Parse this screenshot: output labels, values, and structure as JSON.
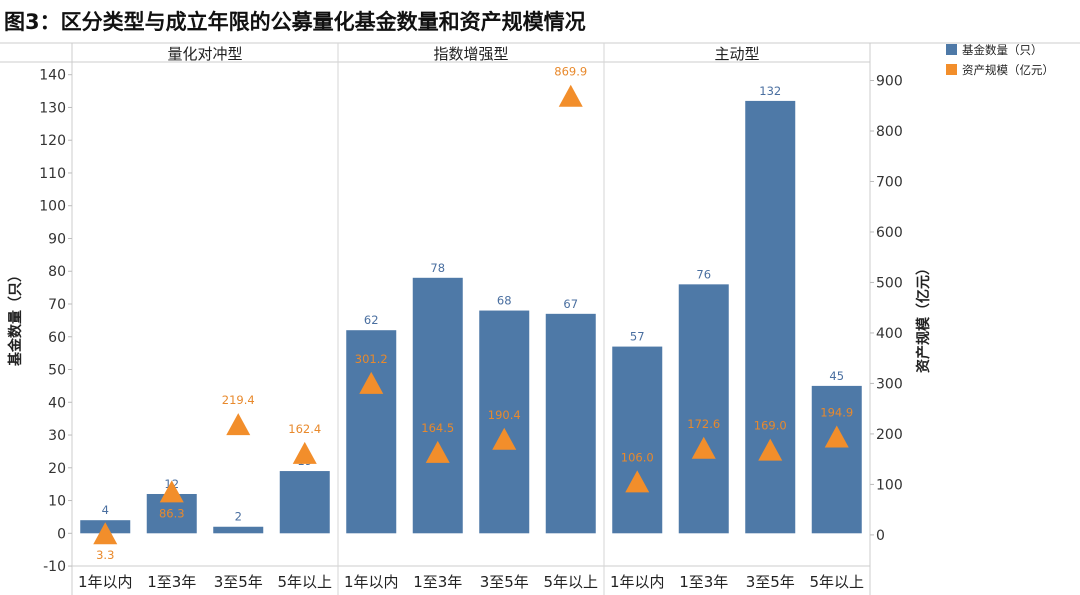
{
  "title": "图3：区分类型与成立年限的公募量化基金数量和资产规模情况",
  "legend": [
    {
      "label": "基金数量（只）",
      "color": "#4e79a7",
      "shape": "square"
    },
    {
      "label": "资产规模（亿元）",
      "color": "#f28e2b",
      "shape": "square"
    }
  ],
  "chart_data": {
    "type": "bar",
    "panels": [
      "量化对冲型",
      "指数增强型",
      "主动型"
    ],
    "categories": [
      "1年以内",
      "1至3年",
      "3至5年",
      "5年以上"
    ],
    "left_axis": {
      "label": "基金数量（只）",
      "range": [
        -10,
        140
      ],
      "ticks": [
        -10,
        0,
        10,
        20,
        30,
        40,
        50,
        60,
        70,
        80,
        90,
        100,
        110,
        120,
        130,
        140
      ]
    },
    "right_axis": {
      "label": "资产规模（亿元）",
      "range": [
        0,
        900
      ],
      "ticks": [
        0,
        100,
        200,
        300,
        400,
        500,
        600,
        700,
        800,
        900
      ]
    },
    "series": [
      {
        "name": "基金数量（只）",
        "type": "bar",
        "axis": "left",
        "color": "#4e79a7",
        "values": [
          [
            4,
            12,
            2,
            19
          ],
          [
            62,
            78,
            68,
            67
          ],
          [
            57,
            76,
            132,
            45
          ]
        ],
        "labels": [
          [
            "4",
            "12",
            "2",
            "19"
          ],
          [
            "62",
            "78",
            "68",
            "67"
          ],
          [
            "57",
            "76",
            "132",
            "45"
          ]
        ]
      },
      {
        "name": "资产规模（亿元）",
        "type": "triangle",
        "axis": "right",
        "color": "#f28e2b",
        "values": [
          [
            3.3,
            86.3,
            219.4,
            162.4
          ],
          [
            301.2,
            164.5,
            190.4,
            869.9
          ],
          [
            106.0,
            172.6,
            169.0,
            194.9
          ]
        ],
        "labels": [
          [
            "3.3",
            "86.3",
            "219.4",
            "162.4"
          ],
          [
            "301.2",
            "164.5",
            "190.4",
            "869.9"
          ],
          [
            "106.0",
            "172.6",
            "169.0",
            "194.9"
          ]
        ]
      }
    ]
  }
}
